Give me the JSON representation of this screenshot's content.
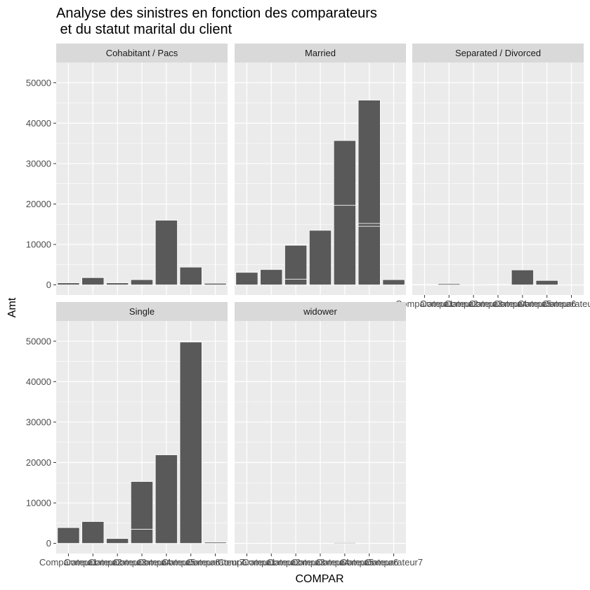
{
  "chart_data": {
    "type": "bar",
    "stacked": true,
    "title_lines": [
      "Analyse des sinistres en fonction des comparateurs",
      " et du statut marital du client"
    ],
    "xlabel": "COMPAR",
    "ylabel": "Amt",
    "ylim": [
      -2500,
      55000
    ],
    "yticks": [
      0,
      10000,
      20000,
      30000,
      40000,
      50000
    ],
    "grid": true,
    "legend": "none",
    "bar_color": "#595959",
    "categories": [
      "Comparateur1",
      "Comparateur2",
      "Comparateur3",
      "Comparateur4",
      "Comparateur5",
      "Comparateur6",
      "Comparateur7"
    ],
    "panels": [
      {
        "name": "Cohabitant / Pacs",
        "show_x_ticks": false,
        "values": [
          [
            500
          ],
          [
            1800
          ],
          [
            500
          ],
          [
            1300
          ],
          [
            16000
          ],
          [
            4400
          ],
          [
            400
          ]
        ]
      },
      {
        "name": "Married",
        "show_x_ticks": false,
        "values": [
          [
            3100
          ],
          [
            3800
          ],
          [
            1400,
            8400
          ],
          [
            13500
          ],
          [
            19700,
            16000
          ],
          [
            14500,
            700,
            30500
          ],
          [
            1300
          ]
        ]
      },
      {
        "name": "Separated / Divorced",
        "show_x_ticks": true,
        "values": [
          [
            100
          ],
          [
            300
          ],
          [],
          [
            100
          ],
          [
            3700
          ],
          [
            1100
          ],
          []
        ]
      },
      {
        "name": "Single",
        "show_x_ticks": true,
        "values": [
          [
            3900
          ],
          [
            5400
          ],
          [
            1200
          ],
          [
            3500,
            11800
          ],
          [
            21900
          ],
          [
            49800
          ],
          [
            300
          ]
        ]
      },
      {
        "name": "widower",
        "show_x_ticks": true,
        "values": [
          [],
          [],
          [],
          [],
          [
            200
          ],
          [],
          []
        ]
      }
    ]
  }
}
